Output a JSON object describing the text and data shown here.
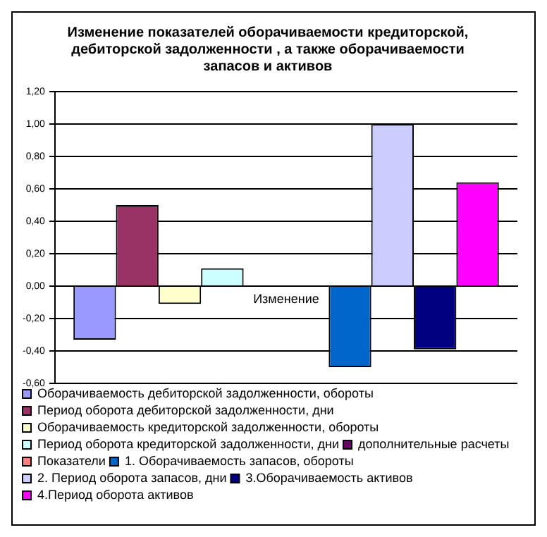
{
  "chart_data": {
    "type": "bar",
    "title": "Изменение показателей оборачиваемости кредиторской, дебиторской задолженности , а также оборачиваемости запасов и активов",
    "categories": [
      "Изменение"
    ],
    "series": [
      {
        "name": "Оборачиваемость дебиторской задолженности, обороты",
        "color": "#9999ff",
        "values": [
          -0.33
        ]
      },
      {
        "name": "Период оборота дебиторской задолженности, дни",
        "color": "#993366",
        "values": [
          0.5
        ]
      },
      {
        "name": "Оборачиваемость кредиторской задолженности, обороты",
        "color": "#ffffcc",
        "values": [
          -0.11
        ]
      },
      {
        "name": "Период оборота кредиторской задолженности, дни",
        "color": "#ccffff",
        "values": [
          0.11
        ]
      },
      {
        "name": "дополнительные расчеты",
        "color": "#660066",
        "values": [
          null
        ]
      },
      {
        "name": "Показатели",
        "color": "#ff8080",
        "values": [
          null
        ]
      },
      {
        "name": "1. Оборачиваемость запасов, обороты",
        "color": "#0066cc",
        "values": [
          -0.5
        ]
      },
      {
        "name": "2. Период оборота запасов, дни",
        "color": "#ccccff",
        "values": [
          1.0
        ]
      },
      {
        "name": "3.Оборачиваемость активов",
        "color": "#000080",
        "values": [
          -0.39
        ]
      },
      {
        "name": "4.Период оборота активов",
        "color": "#ff00ff",
        "values": [
          0.64
        ]
      }
    ],
    "ylim": [
      -0.6,
      1.2
    ],
    "yticks": [
      {
        "value": -0.6,
        "label": "-0,60"
      },
      {
        "value": -0.4,
        "label": "-0,40"
      },
      {
        "value": -0.2,
        "label": "-0,20"
      },
      {
        "value": 0,
        "label": "0,00"
      },
      {
        "value": 0.2,
        "label": "0,20"
      },
      {
        "value": 0.4,
        "label": "0,40"
      },
      {
        "value": 0.6,
        "label": "0,60"
      },
      {
        "value": 0.8,
        "label": "0,80"
      },
      {
        "value": 1.0,
        "label": "1,00"
      },
      {
        "value": 1.2,
        "label": "1,20"
      }
    ],
    "grid": "y",
    "legend": "bottom"
  }
}
